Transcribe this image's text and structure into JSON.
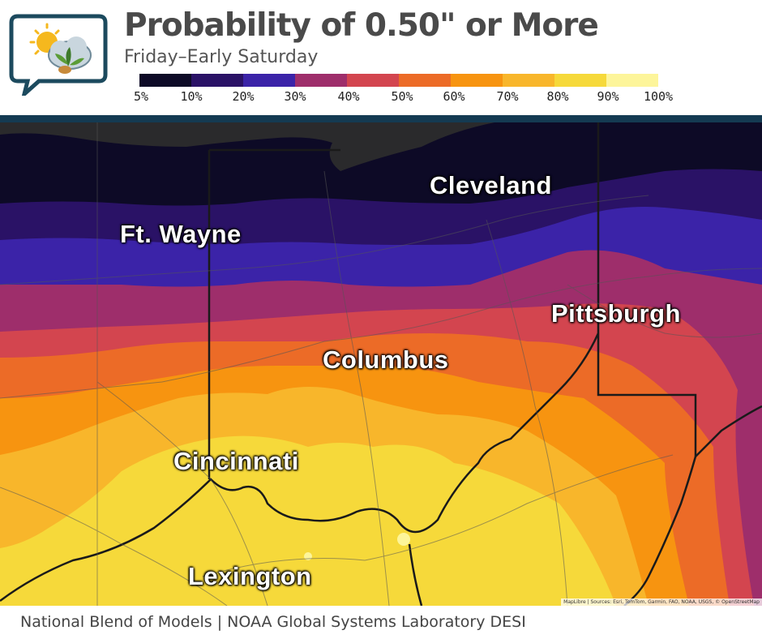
{
  "header": {
    "title": "Probability of 0.50\" or More",
    "subtitle": "Friday–Early Saturday",
    "logo_icon": "weather-sun-cloud-plant-icon"
  },
  "legend": {
    "colors": [
      "#0d0a26",
      "#2a1266",
      "#3b23a8",
      "#9e2e6b",
      "#d3454f",
      "#ec6b27",
      "#f79410",
      "#f8b62b",
      "#f6d93a",
      "#fdf59a"
    ],
    "labels": [
      "5%",
      "10%",
      "20%",
      "30%",
      "40%",
      "50%",
      "60%",
      "70%",
      "80%",
      "90%",
      "100%"
    ]
  },
  "map": {
    "cities": {
      "ft_wayne": "Ft. Wayne",
      "cleveland": "Cleveland",
      "pittsburgh": "Pittsburgh",
      "columbus": "Columbus",
      "cincinnati": "Cincinnati",
      "lexington": "Lexington"
    },
    "attribution": "MapLibre | Sources: Esri, TomTom, Garmin, FAO, NOAA, USGS, © OpenStreetMap"
  },
  "footer": {
    "source": "National Blend of Models | NOAA Global Systems Laboratory DESI"
  }
}
